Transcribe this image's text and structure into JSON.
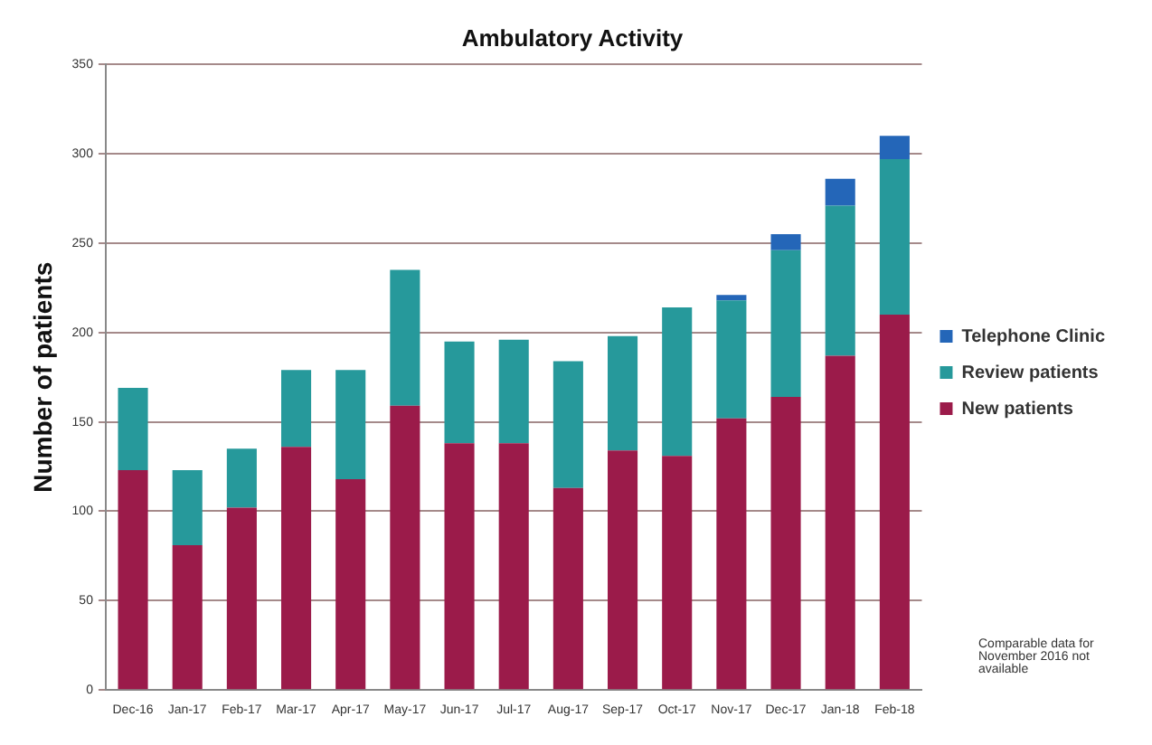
{
  "chart_data": {
    "type": "bar",
    "title": "Ambulatory Activity",
    "ylabel": "Number of patients",
    "categories": [
      "Dec-16",
      "Jan-17",
      "Feb-17",
      "Mar-17",
      "Apr-17",
      "May-17",
      "Jun-17",
      "Jul-17",
      "Aug-17",
      "Sep-17",
      "Oct-17",
      "Nov-17",
      "Dec-17",
      "Jan-18",
      "Feb-18"
    ],
    "series": [
      {
        "name": "New patients",
        "color": "#9b1b4a",
        "values": [
          123,
          81,
          102,
          136,
          118,
          159,
          138,
          138,
          113,
          134,
          131,
          152,
          164,
          187,
          210
        ]
      },
      {
        "name": "Review patients",
        "color": "#26999b",
        "values": [
          46,
          42,
          33,
          43,
          61,
          76,
          57,
          58,
          71,
          64,
          83,
          66,
          82,
          84,
          87
        ]
      },
      {
        "name": "Telephone Clinic",
        "color": "#2466b8",
        "values": [
          0,
          0,
          0,
          0,
          0,
          0,
          0,
          0,
          0,
          0,
          0,
          3,
          9,
          15,
          13
        ]
      }
    ],
    "stacked": true,
    "ylim": [
      0,
      350
    ],
    "yticks": [
      0,
      50,
      100,
      150,
      200,
      250,
      300,
      350
    ],
    "grid": "y",
    "legend": "right",
    "annotations": [
      "Comparable data for November 2016 not available"
    ]
  }
}
